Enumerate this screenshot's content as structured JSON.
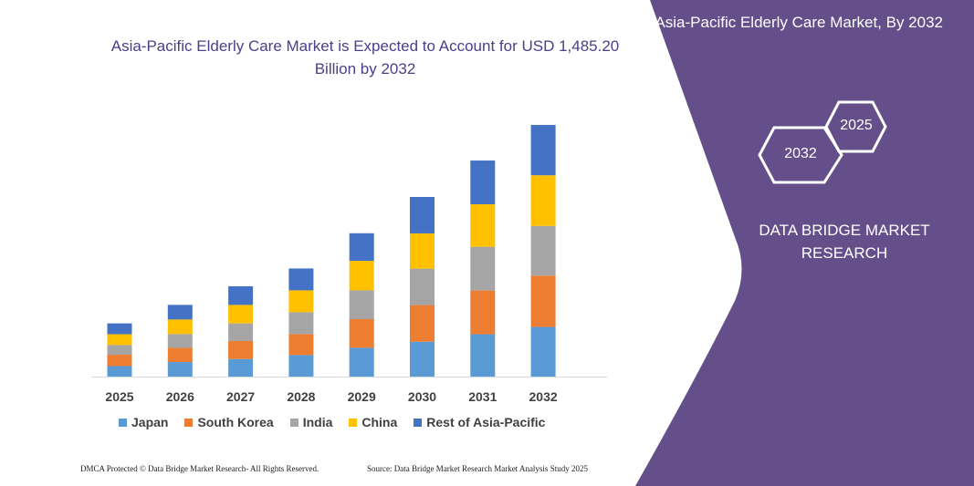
{
  "title": "Asia-Pacific Elderly Care Market is Expected to Account for USD 1,485.20 Billion by 2032",
  "side_panel": {
    "title": "Asia-Pacific Elderly Care Market, By 2032",
    "hex_left": "2032",
    "hex_right": "2025",
    "brand": "DATA BRIDGE MARKET RESEARCH",
    "color": "#654f8a"
  },
  "footer": {
    "left": "DMCA Protected © Data Bridge Market Research- All Rights Reserved.",
    "right": "Source: Data Bridge Market Research Market Analysis Study 2025"
  },
  "chart_data": {
    "type": "bar",
    "stacked": true,
    "title": "Asia-Pacific Elderly Care Market is Expected to Account for USD 1,485.20 Billion by 2032",
    "xlabel": "",
    "ylabel": "",
    "ylim": [
      0,
      1485.2
    ],
    "grid": false,
    "legend": "bottom",
    "categories": [
      "2025",
      "2026",
      "2027",
      "2028",
      "2029",
      "2030",
      "2031",
      "2032"
    ],
    "series": [
      {
        "name": "Japan",
        "color": "#5b9bd5",
        "values": [
          62,
          86,
          104,
          127,
          170,
          206,
          250,
          293
        ]
      },
      {
        "name": "South Korea",
        "color": "#ed7d31",
        "values": [
          67,
          84,
          106,
          124,
          169,
          216,
          258,
          303
        ]
      },
      {
        "name": "India",
        "color": "#a5a5a5",
        "values": [
          57,
          81,
          104,
          129,
          170,
          215,
          258,
          293
        ]
      },
      {
        "name": "China",
        "color": "#ffc000",
        "values": [
          64,
          86,
          109,
          129,
          174,
          208,
          251,
          299
        ]
      },
      {
        "name": "Rest of Asia-Pacific",
        "color": "#4472c4",
        "values": [
          64,
          86,
          110,
          129,
          163,
          215,
          258,
          297
        ]
      }
    ]
  }
}
